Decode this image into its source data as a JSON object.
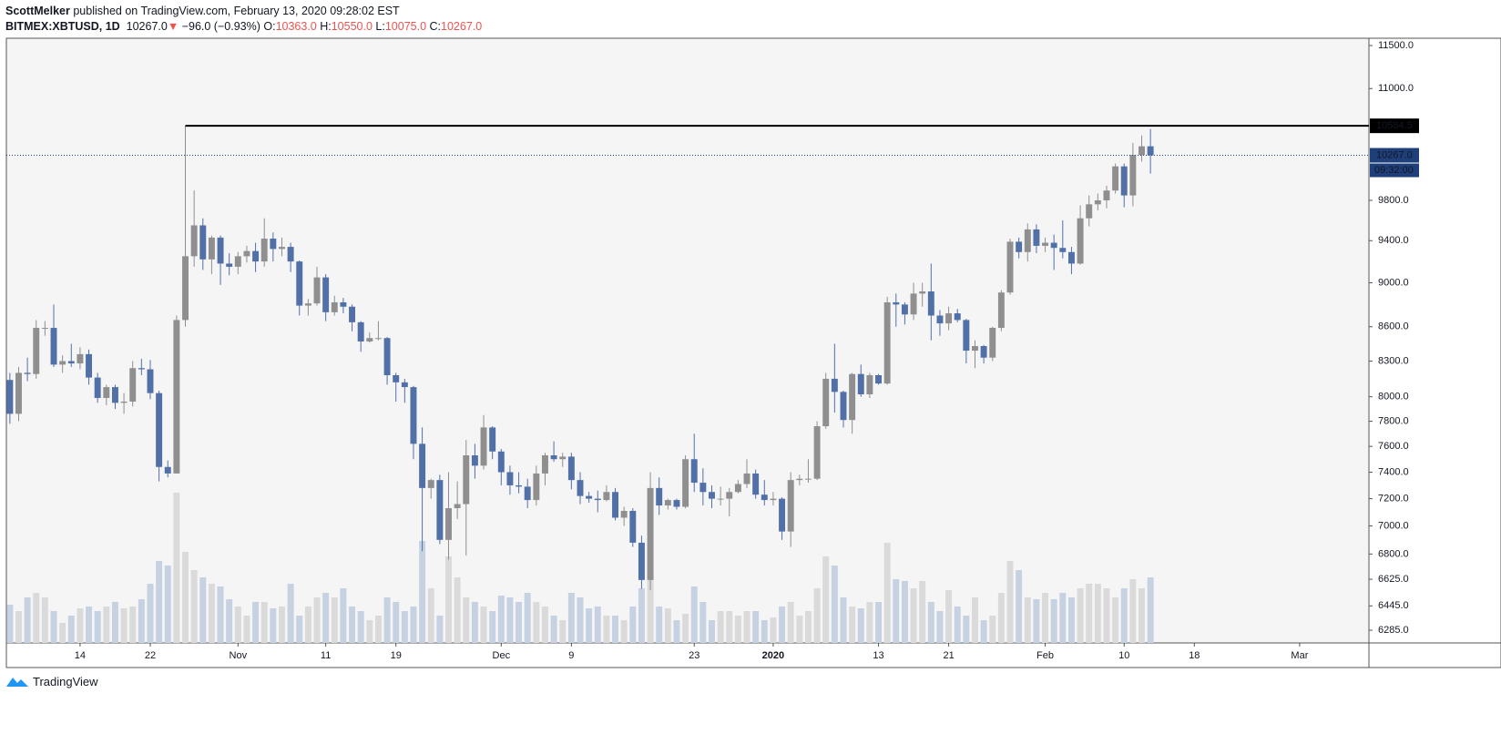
{
  "header": {
    "author": "ScottMelker",
    "published": "published on TradingView.com, February 13, 2020 09:28:02 EST",
    "symbol": "BITMEX:XBTUSD, 1D",
    "last": "10267.0",
    "arrow": "▼",
    "change": "−96.0 (−0.93%)",
    "o_label": "O:",
    "o": "10363.0",
    "h_label": "H:",
    "h": "10550.0",
    "l_label": "L:",
    "l": "10075.0",
    "c_label": "C:",
    "c": "10267.0"
  },
  "footer": {
    "brand": "TradingView"
  },
  "chart_data": {
    "type": "candlestick",
    "log_scale": true,
    "ylim": [
      6203,
      11587
    ],
    "yticks": [
      {
        "value": 11500,
        "label": "11500.0"
      },
      {
        "value": 11000,
        "label": "11000.0"
      },
      {
        "value": 9800,
        "label": "9800.0"
      },
      {
        "value": 9400,
        "label": "9400.0"
      },
      {
        "value": 9000,
        "label": "9000.0"
      },
      {
        "value": 8600,
        "label": "8600.0"
      },
      {
        "value": 8300,
        "label": "8300.0"
      },
      {
        "value": 8000,
        "label": "8000.0"
      },
      {
        "value": 7800,
        "label": "7800.0"
      },
      {
        "value": 7600,
        "label": "7600.0"
      },
      {
        "value": 7400,
        "label": "7400.0"
      },
      {
        "value": 7200,
        "label": "7200.0"
      },
      {
        "value": 7000,
        "label": "7000.0"
      },
      {
        "value": 6800,
        "label": "6800.0"
      },
      {
        "value": 6625,
        "label": "6625.0"
      },
      {
        "value": 6445,
        "label": "6445.0"
      },
      {
        "value": 6285,
        "label": "6285.0"
      }
    ],
    "xlim": [
      -0.4,
      154.9
    ],
    "xticks": [
      {
        "value": 8,
        "label": "14"
      },
      {
        "value": 16,
        "label": "22"
      },
      {
        "value": 26,
        "label": "Nov"
      },
      {
        "value": 36,
        "label": "11"
      },
      {
        "value": 44,
        "label": "19"
      },
      {
        "value": 56,
        "label": "Dec"
      },
      {
        "value": 64,
        "label": "9"
      },
      {
        "value": 78,
        "label": "23"
      },
      {
        "value": 87,
        "label": "2020"
      },
      {
        "value": 99,
        "label": "13"
      },
      {
        "value": 107,
        "label": "21"
      },
      {
        "value": 118,
        "label": "Feb"
      },
      {
        "value": 127,
        "label": "10"
      },
      {
        "value": 135,
        "label": "18"
      },
      {
        "value": 147,
        "label": "Mar"
      }
    ],
    "up_color": "#8f8f8f",
    "down_color": "#5170a8",
    "volume_up_color": "#dadada",
    "volume_down_color": "#c6d1e2",
    "hline": {
      "value": 10584.5,
      "start": 20,
      "color": "#000000"
    },
    "last_price": {
      "value": 10267,
      "label": "10267.0",
      "time": "09:32:00",
      "color": "#1e3f7a"
    },
    "ohlc": [
      [
        8140,
        8200,
        7780,
        7860
      ],
      [
        7860,
        8250,
        7800,
        8200
      ],
      [
        8200,
        8330,
        8130,
        8190
      ],
      [
        8190,
        8660,
        8150,
        8590
      ],
      [
        8590,
        8650,
        8520,
        8590
      ],
      [
        8590,
        8800,
        8250,
        8270
      ],
      [
        8270,
        8350,
        8200,
        8300
      ],
      [
        8300,
        8450,
        8250,
        8280
      ],
      [
        8280,
        8420,
        8230,
        8360
      ],
      [
        8360,
        8400,
        8100,
        8160
      ],
      [
        8160,
        8200,
        7950,
        7990
      ],
      [
        7990,
        8100,
        7930,
        8080
      ],
      [
        8080,
        8100,
        7900,
        7950
      ],
      [
        7950,
        8030,
        7860,
        7960
      ],
      [
        7960,
        8300,
        7920,
        8240
      ],
      [
        8240,
        8320,
        8180,
        8230
      ],
      [
        8230,
        8310,
        7980,
        8030
      ],
      [
        8030,
        8050,
        7330,
        7440
      ],
      [
        7440,
        7490,
        7360,
        7390
      ],
      [
        7390,
        8700,
        7390,
        8660
      ],
      [
        8660,
        10584.5,
        8600,
        9250
      ],
      [
        9250,
        9900,
        9150,
        9550
      ],
      [
        9550,
        9620,
        9120,
        9220
      ],
      [
        9220,
        9450,
        9080,
        9430
      ],
      [
        9430,
        9450,
        8980,
        9180
      ],
      [
        9180,
        9280,
        9070,
        9150
      ],
      [
        9150,
        9290,
        9080,
        9250
      ],
      [
        9250,
        9350,
        9190,
        9300
      ],
      [
        9300,
        9380,
        9100,
        9200
      ],
      [
        9200,
        9620,
        9150,
        9420
      ],
      [
        9420,
        9480,
        9200,
        9320
      ],
      [
        9320,
        9430,
        9250,
        9340
      ],
      [
        9340,
        9380,
        9100,
        9200
      ],
      [
        9200,
        9210,
        8700,
        8790
      ],
      [
        8790,
        8850,
        8700,
        8810
      ],
      [
        8810,
        9150,
        8790,
        9050
      ],
      [
        9050,
        9080,
        8650,
        8730
      ],
      [
        8730,
        8880,
        8700,
        8820
      ],
      [
        8820,
        8860,
        8720,
        8780
      ],
      [
        8780,
        8800,
        8560,
        8640
      ],
      [
        8640,
        8650,
        8380,
        8470
      ],
      [
        8470,
        8550,
        8460,
        8500
      ],
      [
        8500,
        8650,
        8480,
        8500
      ],
      [
        8500,
        8510,
        8100,
        8180
      ],
      [
        8180,
        8200,
        7960,
        8120
      ],
      [
        8120,
        8150,
        7950,
        8080
      ],
      [
        8080,
        8090,
        7500,
        7620
      ],
      [
        7620,
        7750,
        6820,
        7280
      ],
      [
        7280,
        7350,
        7200,
        7340
      ],
      [
        7340,
        7380,
        6870,
        6900
      ],
      [
        6900,
        7400,
        6760,
        7130
      ],
      [
        7130,
        7330,
        7050,
        7160
      ],
      [
        7160,
        7650,
        6790,
        7530
      ],
      [
        7530,
        7620,
        7350,
        7450
      ],
      [
        7450,
        7850,
        7420,
        7750
      ],
      [
        7750,
        7760,
        7500,
        7560
      ],
      [
        7560,
        7580,
        7300,
        7400
      ],
      [
        7400,
        7450,
        7230,
        7300
      ],
      [
        7300,
        7400,
        7240,
        7290
      ],
      [
        7290,
        7350,
        7130,
        7190
      ],
      [
        7190,
        7450,
        7150,
        7390
      ],
      [
        7390,
        7550,
        7300,
        7530
      ],
      [
        7530,
        7640,
        7480,
        7500
      ],
      [
        7500,
        7550,
        7440,
        7520
      ],
      [
        7520,
        7550,
        7270,
        7340
      ],
      [
        7340,
        7400,
        7160,
        7220
      ],
      [
        7220,
        7250,
        7170,
        7200
      ],
      [
        7200,
        7260,
        7100,
        7190
      ],
      [
        7190,
        7300,
        7180,
        7250
      ],
      [
        7250,
        7280,
        7040,
        7060
      ],
      [
        7060,
        7140,
        7000,
        7110
      ],
      [
        7110,
        7130,
        6850,
        6880
      ],
      [
        6880,
        6930,
        6560,
        6620
      ],
      [
        6620,
        7400,
        6550,
        7280
      ],
      [
        7280,
        7360,
        7080,
        7150
      ],
      [
        7150,
        7200,
        7120,
        7190
      ],
      [
        7190,
        7200,
        7120,
        7140
      ],
      [
        7140,
        7530,
        7130,
        7500
      ],
      [
        7500,
        7700,
        7250,
        7320
      ],
      [
        7320,
        7430,
        7150,
        7250
      ],
      [
        7250,
        7300,
        7130,
        7200
      ],
      [
        7200,
        7290,
        7150,
        7200
      ],
      [
        7200,
        7280,
        7070,
        7250
      ],
      [
        7250,
        7340,
        7240,
        7310
      ],
      [
        7310,
        7500,
        7280,
        7390
      ],
      [
        7390,
        7420,
        7200,
        7230
      ],
      [
        7230,
        7340,
        7150,
        7190
      ],
      [
        7190,
        7250,
        7150,
        7200
      ],
      [
        7200,
        7210,
        6900,
        6960
      ],
      [
        6960,
        7400,
        6850,
        7340
      ],
      [
        7340,
        7380,
        7300,
        7350
      ],
      [
        7350,
        7500,
        7320,
        7350
      ],
      [
        7350,
        7800,
        7340,
        7760
      ],
      [
        7760,
        8200,
        7740,
        8150
      ],
      [
        8150,
        8450,
        7870,
        8040
      ],
      [
        8040,
        8050,
        7750,
        7810
      ],
      [
        7810,
        8200,
        7700,
        8190
      ],
      [
        8190,
        8270,
        8000,
        8020
      ],
      [
        8020,
        8200,
        7990,
        8180
      ],
      [
        8180,
        8190,
        8100,
        8110
      ],
      [
        8110,
        8870,
        8100,
        8820
      ],
      [
        8820,
        8900,
        8600,
        8800
      ],
      [
        8800,
        8820,
        8620,
        8710
      ],
      [
        8710,
        9000,
        8660,
        8900
      ],
      [
        8900,
        9000,
        8780,
        8920
      ],
      [
        8920,
        9180,
        8480,
        8700
      ],
      [
        8700,
        8750,
        8520,
        8630
      ],
      [
        8630,
        8780,
        8570,
        8720
      ],
      [
        8720,
        8760,
        8640,
        8660
      ],
      [
        8660,
        8670,
        8280,
        8390
      ],
      [
        8390,
        8480,
        8240,
        8430
      ],
      [
        8430,
        8440,
        8280,
        8330
      ],
      [
        8330,
        8600,
        8300,
        8590
      ],
      [
        8590,
        8930,
        8560,
        8910
      ],
      [
        8910,
        9420,
        8890,
        9390
      ],
      [
        9390,
        9430,
        9230,
        9290
      ],
      [
        9290,
        9570,
        9200,
        9510
      ],
      [
        9510,
        9560,
        9280,
        9350
      ],
      [
        9350,
        9430,
        9290,
        9380
      ],
      [
        9380,
        9460,
        9120,
        9330
      ],
      [
        9330,
        9600,
        9230,
        9290
      ],
      [
        9290,
        9340,
        9080,
        9180
      ],
      [
        9180,
        9750,
        9170,
        9620
      ],
      [
        9620,
        9850,
        9540,
        9760
      ],
      [
        9760,
        9870,
        9700,
        9800
      ],
      [
        9800,
        9950,
        9720,
        9900
      ],
      [
        9900,
        10180,
        9870,
        10150
      ],
      [
        10150,
        10180,
        9730,
        9850
      ],
      [
        9850,
        10400,
        9740,
        10270
      ],
      [
        10270,
        10480,
        10200,
        10363
      ],
      [
        10363,
        10550,
        10075,
        10267
      ]
    ],
    "volume_lim": [
      0,
      664
    ],
    "volume": [
      42,
      35,
      50,
      55,
      50,
      35,
      22,
      30,
      38,
      40,
      35,
      40,
      45,
      38,
      40,
      48,
      65,
      90,
      85,
      165,
      100,
      80,
      72,
      65,
      62,
      48,
      40,
      30,
      45,
      45,
      38,
      40,
      65,
      30,
      40,
      50,
      55,
      50,
      60,
      40,
      35,
      25,
      30,
      50,
      45,
      35,
      40,
      112,
      60,
      30,
      95,
      72,
      50,
      45,
      40,
      35,
      52,
      50,
      45,
      55,
      45,
      40,
      30,
      25,
      55,
      50,
      38,
      40,
      30,
      30,
      25,
      40,
      60,
      70,
      40,
      38,
      25,
      32,
      62,
      45,
      25,
      35,
      35,
      30,
      35,
      35,
      25,
      28,
      40,
      45,
      30,
      35,
      60,
      95,
      85,
      50,
      40,
      38,
      45,
      45,
      110,
      70,
      68,
      60,
      68,
      45,
      35,
      58,
      40,
      30,
      50,
      25,
      30,
      55,
      90,
      80,
      50,
      48,
      55,
      48,
      55,
      50,
      60,
      65,
      65,
      60,
      50,
      60,
      70,
      60,
      72
    ]
  }
}
